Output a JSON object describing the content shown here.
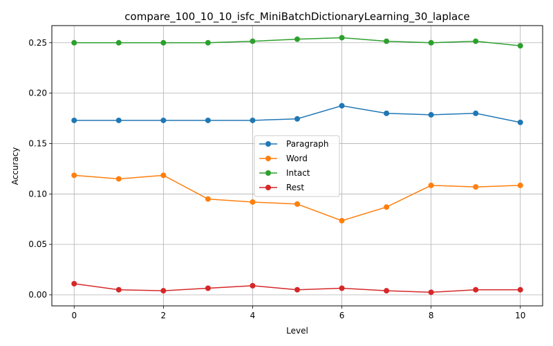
{
  "chart_data": {
    "type": "line",
    "title": "compare_100_10_10_isfc_MiniBatchDictionaryLearning_30_laplace",
    "xlabel": "Level",
    "ylabel": "Accuracy",
    "xlim": [
      -0.5,
      10.5
    ],
    "ylim": [
      -0.011,
      0.267
    ],
    "xticks": [
      0,
      2,
      4,
      6,
      8,
      10
    ],
    "xtick_labels": [
      "0",
      "2",
      "4",
      "6",
      "8",
      "10"
    ],
    "yticks": [
      0.0,
      0.05,
      0.1,
      0.15,
      0.2,
      0.25
    ],
    "ytick_labels": [
      "0.00",
      "0.05",
      "0.10",
      "0.15",
      "0.20",
      "0.25"
    ],
    "grid": true,
    "legend_position": "center",
    "x": [
      0,
      1,
      2,
      3,
      4,
      5,
      6,
      7,
      8,
      9,
      10
    ],
    "series": [
      {
        "name": "Paragraph",
        "color": "#1f77b4",
        "values": [
          0.173,
          0.173,
          0.173,
          0.173,
          0.173,
          0.1745,
          0.1875,
          0.18,
          0.1785,
          0.18,
          0.171
        ]
      },
      {
        "name": "Word",
        "color": "#ff7f0e",
        "values": [
          0.1185,
          0.115,
          0.1185,
          0.095,
          0.092,
          0.09,
          0.0735,
          0.087,
          0.1085,
          0.107,
          0.1085
        ]
      },
      {
        "name": "Intact",
        "color": "#2ca02c",
        "values": [
          0.25,
          0.25,
          0.25,
          0.25,
          0.2515,
          0.2535,
          0.255,
          0.2515,
          0.25,
          0.2515,
          0.247
        ]
      },
      {
        "name": "Rest",
        "color": "#d62728",
        "values": [
          0.011,
          0.005,
          0.004,
          0.0065,
          0.009,
          0.005,
          0.0065,
          0.004,
          0.0025,
          0.005,
          0.005
        ]
      }
    ]
  }
}
